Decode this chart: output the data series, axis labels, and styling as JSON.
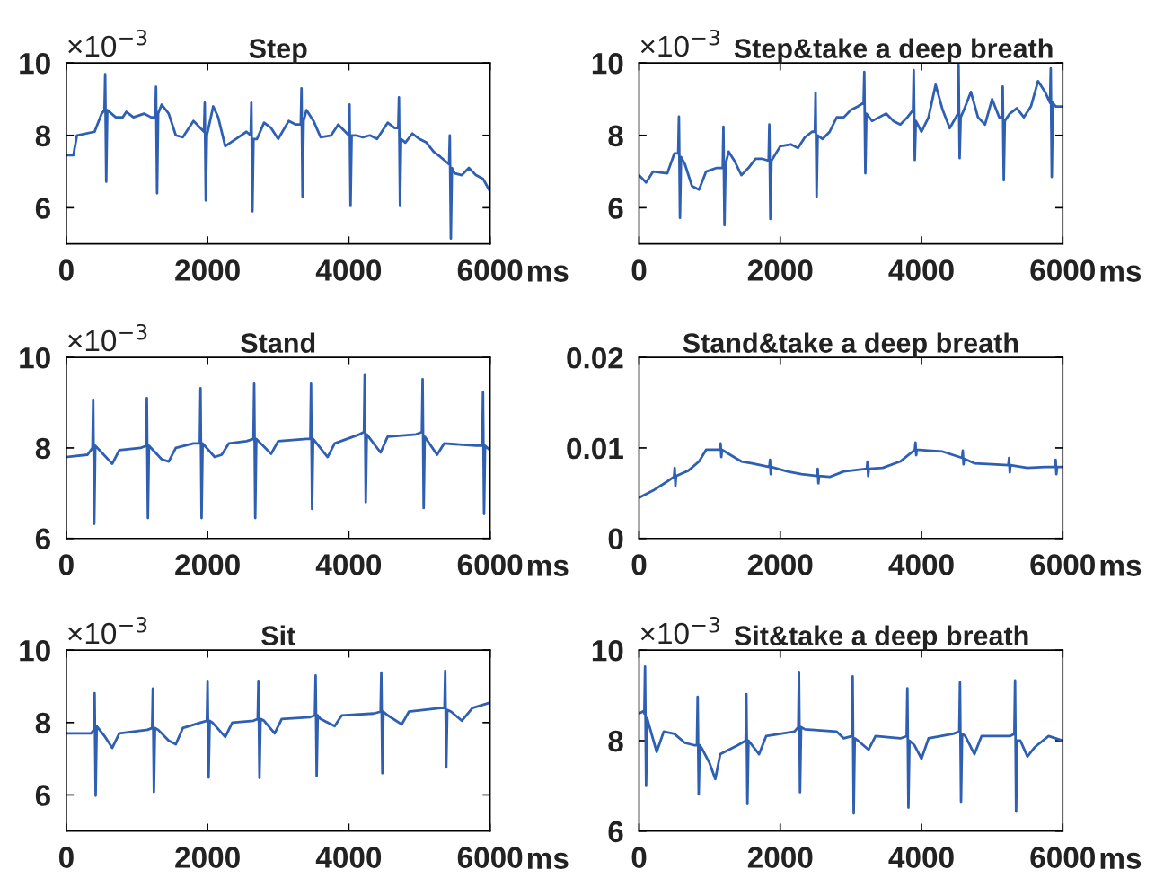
{
  "chart_data": [
    {
      "type": "line",
      "title": "Step",
      "xlabel": "ms",
      "annotations": [
        "×10$^{−3}$"
      ],
      "xlim": [
        0,
        6000
      ],
      "xticks": [
        0,
        2000,
        4000,
        6000
      ],
      "ylim": [
        5,
        10
      ],
      "yticks": [
        6,
        8,
        10
      ],
      "grid": false,
      "legend": false,
      "series": [
        {
          "color": "#2f5fb3",
          "x": [
            0,
            100,
            150,
            400,
            500,
            540,
            550,
            565,
            580,
            700,
            800,
            850,
            950,
            1100,
            1200,
            1260,
            1270,
            1285,
            1300,
            1350,
            1450,
            1550,
            1650,
            1800,
            1900,
            1950,
            1960,
            1975,
            1990,
            2080,
            2150,
            2250,
            2400,
            2550,
            2610,
            2620,
            2635,
            2650,
            2700,
            2800,
            2900,
            3000,
            3150,
            3250,
            3320,
            3330,
            3345,
            3360,
            3400,
            3500,
            3600,
            3750,
            3850,
            3950,
            4000,
            4010,
            4025,
            4040,
            4100,
            4200,
            4300,
            4400,
            4550,
            4650,
            4700,
            4710,
            4725,
            4740,
            4800,
            4900,
            5000,
            5100,
            5200,
            5300,
            5420,
            5430,
            5445,
            5460,
            5500,
            5600,
            5700,
            5800,
            5900,
            6000
          ],
          "values": [
            7.45,
            7.45,
            8.0,
            8.1,
            8.6,
            8.7,
            9.69,
            6.72,
            8.7,
            8.5,
            8.5,
            8.65,
            8.5,
            8.6,
            8.5,
            8.5,
            9.34,
            6.4,
            8.6,
            8.85,
            8.6,
            8.0,
            7.95,
            8.4,
            8.2,
            8.1,
            8.9,
            6.2,
            8.0,
            8.8,
            8.5,
            7.7,
            7.9,
            8.1,
            8.0,
            8.9,
            5.9,
            7.9,
            7.9,
            8.35,
            8.2,
            7.9,
            8.4,
            8.3,
            8.3,
            9.3,
            6.3,
            8.4,
            8.7,
            8.4,
            7.95,
            8.0,
            8.3,
            8.1,
            8.0,
            8.85,
            6.05,
            8.0,
            8.0,
            7.95,
            8.0,
            7.9,
            8.35,
            8.2,
            8.2,
            9.05,
            6.05,
            7.9,
            7.8,
            8.05,
            7.9,
            7.8,
            7.55,
            7.4,
            7.2,
            8.0,
            5.15,
            7.1,
            6.95,
            6.9,
            7.1,
            6.9,
            6.8,
            6.45
          ]
        }
      ]
    },
    {
      "type": "line",
      "title": "Step&take a deep breath",
      "xlabel": "ms",
      "annotations": [
        "×10$^{−3}$"
      ],
      "xlim": [
        0,
        6000
      ],
      "xticks": [
        0,
        2000,
        4000,
        6000
      ],
      "ylim": [
        5,
        10
      ],
      "yticks": [
        6,
        8,
        10
      ],
      "grid": false,
      "legend": false,
      "series": [
        {
          "color": "#2f5fb3",
          "x": [
            0,
            100,
            200,
            400,
            500,
            555,
            565,
            580,
            595,
            650,
            750,
            850,
            950,
            1100,
            1185,
            1195,
            1210,
            1225,
            1270,
            1350,
            1450,
            1550,
            1650,
            1750,
            1835,
            1845,
            1860,
            1875,
            2000,
            2150,
            2250,
            2350,
            2450,
            2490,
            2500,
            2515,
            2530,
            2600,
            2700,
            2800,
            2900,
            3000,
            3100,
            3180,
            3190,
            3205,
            3220,
            3300,
            3400,
            3500,
            3600,
            3700,
            3800,
            3880,
            3890,
            3905,
            3920,
            4000,
            4100,
            4200,
            4300,
            4400,
            4515,
            4525,
            4540,
            4555,
            4600,
            4700,
            4800,
            4900,
            5000,
            5100,
            5140,
            5150,
            5165,
            5180,
            5250,
            5350,
            5450,
            5550,
            5650,
            5750,
            5820,
            5830,
            5845,
            5860,
            5900,
            6000
          ],
          "values": [
            6.9,
            6.7,
            7.0,
            6.95,
            7.5,
            7.5,
            8.52,
            5.72,
            7.4,
            7.2,
            6.6,
            6.5,
            7.0,
            7.1,
            7.1,
            8.24,
            5.52,
            7.2,
            7.55,
            7.3,
            6.9,
            7.1,
            7.35,
            7.35,
            7.3,
            8.3,
            5.69,
            7.3,
            7.7,
            7.75,
            7.65,
            7.95,
            8.1,
            8.1,
            9.18,
            6.3,
            8.0,
            7.9,
            8.1,
            8.5,
            8.5,
            8.7,
            8.8,
            8.9,
            9.75,
            6.95,
            8.6,
            8.4,
            8.5,
            8.6,
            8.4,
            8.3,
            8.5,
            8.7,
            9.8,
            7.32,
            8.4,
            8.1,
            8.5,
            9.4,
            8.7,
            8.2,
            8.6,
            9.95,
            7.37,
            8.5,
            8.7,
            9.2,
            8.5,
            8.3,
            9.0,
            8.5,
            8.5,
            9.35,
            6.76,
            8.4,
            8.6,
            8.75,
            8.5,
            8.8,
            9.5,
            9.2,
            8.9,
            9.85,
            6.85,
            8.9,
            8.8,
            8.8
          ]
        }
      ]
    },
    {
      "type": "line",
      "title": "Stand",
      "xlabel": "ms",
      "annotations": [
        "×10$^{−3}$"
      ],
      "xlim": [
        0,
        6000
      ],
      "xticks": [
        0,
        2000,
        4000,
        6000
      ],
      "ylim": [
        6,
        10
      ],
      "yticks": [
        6,
        8,
        10
      ],
      "grid": false,
      "legend": false,
      "series": [
        {
          "color": "#2f5fb3",
          "x": [
            0,
            300,
            370,
            380,
            395,
            410,
            500,
            650,
            750,
            1050,
            1130,
            1140,
            1155,
            1170,
            1200,
            1350,
            1450,
            1550,
            1800,
            1890,
            1900,
            1915,
            1930,
            2100,
            2200,
            2300,
            2550,
            2650,
            2660,
            2675,
            2690,
            2900,
            3000,
            3400,
            3455,
            3465,
            3480,
            3495,
            3700,
            3800,
            4150,
            4215,
            4225,
            4240,
            4255,
            4450,
            4550,
            4950,
            5035,
            5045,
            5060,
            5075,
            5250,
            5350,
            5800,
            5890,
            5900,
            5915,
            5930,
            6000
          ],
          "values": [
            7.8,
            7.85,
            8.0,
            9.07,
            6.32,
            8.05,
            7.9,
            7.65,
            7.95,
            8.0,
            8.05,
            9.1,
            6.45,
            8.05,
            8.0,
            7.75,
            7.7,
            8.0,
            8.1,
            8.1,
            9.32,
            6.45,
            8.1,
            7.8,
            7.85,
            8.1,
            8.15,
            8.2,
            9.42,
            6.45,
            8.2,
            7.87,
            8.15,
            8.2,
            8.2,
            9.42,
            6.65,
            8.2,
            7.8,
            8.1,
            8.3,
            8.35,
            9.61,
            6.8,
            8.3,
            7.9,
            8.25,
            8.3,
            8.35,
            9.52,
            6.67,
            8.25,
            7.85,
            8.1,
            8.05,
            8.05,
            9.23,
            6.54,
            8.05,
            7.95
          ]
        }
      ]
    },
    {
      "type": "line",
      "title": "Stand&take a deep breath",
      "xlabel": "ms",
      "xlim": [
        0,
        6000
      ],
      "xticks": [
        0,
        2000,
        4000,
        6000
      ],
      "ylim": [
        0,
        0.02
      ],
      "yticks": [
        0,
        0.01,
        0.02
      ],
      "grid": false,
      "legend": false,
      "series": [
        {
          "color": "#2f5fb3",
          "x": [
            0,
            200,
            400,
            495,
            505,
            515,
            525,
            700,
            850,
            950,
            1145,
            1155,
            1165,
            1175,
            1300,
            1450,
            1600,
            1845,
            1855,
            1865,
            1875,
            2100,
            2300,
            2520,
            2530,
            2540,
            2550,
            2700,
            2900,
            3225,
            3235,
            3245,
            3255,
            3450,
            3700,
            3905,
            3915,
            3925,
            3935,
            4100,
            4300,
            4575,
            4585,
            4595,
            4605,
            4750,
            5000,
            5230,
            5240,
            5250,
            5260,
            5500,
            5750,
            5890,
            5900,
            5910,
            5920,
            6000
          ],
          "values": [
            0.0045,
            0.0053,
            0.0063,
            0.0068,
            0.0078,
            0.0058,
            0.0069,
            0.0075,
            0.0085,
            0.0098,
            0.0098,
            0.0105,
            0.009,
            0.0098,
            0.0092,
            0.0085,
            0.0083,
            0.0079,
            0.0087,
            0.0071,
            0.0079,
            0.0074,
            0.0071,
            0.0069,
            0.0077,
            0.0061,
            0.0069,
            0.0068,
            0.0074,
            0.0077,
            0.0085,
            0.0069,
            0.0077,
            0.0078,
            0.0085,
            0.0098,
            0.0106,
            0.0092,
            0.0098,
            0.0097,
            0.0096,
            0.0089,
            0.0097,
            0.0082,
            0.0088,
            0.0083,
            0.0082,
            0.0081,
            0.0089,
            0.0073,
            0.0081,
            0.0078,
            0.0079,
            0.0079,
            0.0087,
            0.0071,
            0.0079,
            0.0079
          ]
        }
      ]
    },
    {
      "type": "line",
      "title": "Sit",
      "xlabel": "ms",
      "annotations": [
        "×10$^{−3}$"
      ],
      "xlim": [
        0,
        6000
      ],
      "xticks": [
        0,
        2000,
        4000,
        6000
      ],
      "ylim": [
        5,
        10
      ],
      "yticks": [
        6,
        8,
        10
      ],
      "grid": false,
      "legend": false,
      "series": [
        {
          "color": "#2f5fb3",
          "x": [
            0,
            350,
            390,
            400,
            415,
            430,
            450,
            550,
            650,
            750,
            1150,
            1215,
            1225,
            1240,
            1255,
            1300,
            1450,
            1550,
            1650,
            1900,
            1990,
            2000,
            2015,
            2030,
            2070,
            2250,
            2350,
            2650,
            2710,
            2720,
            2735,
            2750,
            2800,
            2950,
            3050,
            3450,
            3520,
            3530,
            3545,
            3560,
            3600,
            3800,
            3900,
            4350,
            4450,
            4460,
            4475,
            4490,
            4550,
            4750,
            4850,
            5300,
            5355,
            5365,
            5380,
            5395,
            5450,
            5600,
            5750,
            6000
          ],
          "values": [
            7.7,
            7.7,
            7.8,
            8.81,
            5.98,
            7.9,
            7.85,
            7.6,
            7.3,
            7.7,
            7.8,
            7.85,
            8.94,
            6.08,
            7.85,
            7.8,
            7.5,
            7.4,
            7.85,
            8.0,
            8.05,
            9.15,
            6.48,
            8.05,
            8.0,
            7.6,
            8.0,
            8.05,
            8.1,
            9.15,
            6.47,
            8.1,
            8.05,
            7.7,
            8.1,
            8.15,
            8.2,
            9.3,
            6.52,
            8.2,
            8.1,
            7.9,
            8.2,
            8.25,
            8.3,
            9.38,
            6.6,
            8.3,
            8.2,
            7.95,
            8.3,
            8.4,
            8.4,
            9.43,
            6.76,
            8.35,
            8.3,
            8.05,
            8.4,
            8.55
          ]
        }
      ]
    },
    {
      "type": "line",
      "title": "Sit&take a deep breath",
      "xlabel": "ms",
      "annotations": [
        "×10$^{−3}$"
      ],
      "xlim": [
        0,
        6000
      ],
      "xticks": [
        0,
        2000,
        4000,
        6000
      ],
      "ylim": [
        6,
        10
      ],
      "yticks": [
        6,
        8,
        10
      ],
      "grid": false,
      "legend": false,
      "series": [
        {
          "color": "#2f5fb3",
          "x": [
            0,
            60,
            75,
            85,
            100,
            115,
            150,
            250,
            350,
            500,
            650,
            780,
            820,
            830,
            845,
            860,
            900,
            1000,
            1080,
            1150,
            1400,
            1510,
            1520,
            1535,
            1550,
            1600,
            1700,
            1800,
            2200,
            2255,
            2265,
            2280,
            2295,
            2350,
            2800,
            2900,
            3015,
            3025,
            3040,
            3055,
            3100,
            3250,
            3350,
            3700,
            3790,
            3800,
            3815,
            3830,
            3900,
            4000,
            4100,
            4450,
            4535,
            4545,
            4560,
            4575,
            4620,
            4750,
            4850,
            5250,
            5315,
            5325,
            5340,
            5355,
            5400,
            5500,
            5600,
            5800,
            6000
          ],
          "values": [
            8.6,
            8.65,
            8.6,
            9.64,
            7.0,
            8.5,
            8.3,
            7.75,
            8.2,
            8.15,
            7.95,
            7.9,
            7.9,
            8.97,
            6.81,
            7.9,
            7.8,
            7.5,
            7.15,
            7.7,
            7.9,
            8.0,
            9.03,
            6.6,
            8.0,
            7.9,
            7.7,
            8.1,
            8.2,
            8.3,
            9.52,
            6.86,
            8.3,
            8.25,
            8.2,
            8.05,
            8.1,
            9.42,
            6.39,
            8.05,
            8.0,
            7.8,
            8.1,
            8.05,
            8.1,
            9.16,
            6.52,
            8.0,
            7.9,
            7.6,
            8.05,
            8.15,
            8.2,
            9.29,
            6.65,
            8.15,
            8.1,
            7.7,
            8.1,
            8.1,
            8.15,
            9.33,
            6.43,
            8.0,
            8.0,
            7.65,
            7.85,
            8.1,
            8.0
          ]
        }
      ]
    }
  ]
}
